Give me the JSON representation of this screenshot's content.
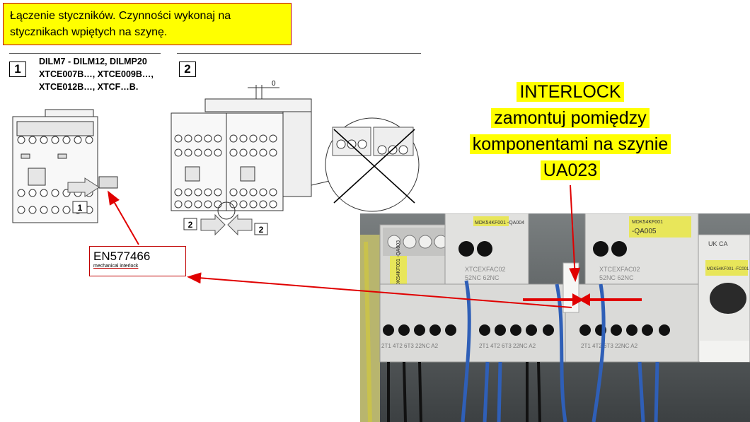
{
  "header": {
    "line1": "Łączenie styczników. Czynności wykonaj na",
    "line2": "stycznikach wpiętych na szynę."
  },
  "step1": {
    "number": "1",
    "line1": "DILM7 - DILM12, DILMP20",
    "line2": "XTCE007B…, XTCE009B…,",
    "line3": "XTCE012B…, XTCF…B.",
    "arrow_label": "1"
  },
  "step2": {
    "number": "2",
    "gap_label": "0",
    "arrow_label_left": "2",
    "arrow_label_right": "2"
  },
  "callout": {
    "code": "EN577466",
    "desc": "mechanical interlock"
  },
  "interlock_note": {
    "line1": "INTERLOCK",
    "line2": "zamontuj pomiędzy",
    "line3": "komponentami na szynie",
    "line4": "UA023"
  },
  "photo": {
    "label_left": "MDK54KF001 -QA003",
    "label_mid_top": "MDK54KF001 -QA004",
    "label_right_top": "MDK54KF001",
    "label_right": "-QA005",
    "label_far_right": "MDK54KF001 -FC001",
    "model_mid": "XTCEXFAC02",
    "model_right": "XTCEXFAC02",
    "nc_mid": "52NC 62NC",
    "nc_right": "52NC 62NC",
    "terminals_mid": "2T1  4T2  6T3 22NC  A2",
    "terminals_right": "2T1  4T2  6T3 22NC  A2",
    "terminals_left": "2T1  4T2  6T3 22NC  A2",
    "ukca": "UK CA"
  },
  "colors": {
    "highlight": "#ffff00",
    "annotation": "#e00000",
    "box_border": "#c00000"
  }
}
